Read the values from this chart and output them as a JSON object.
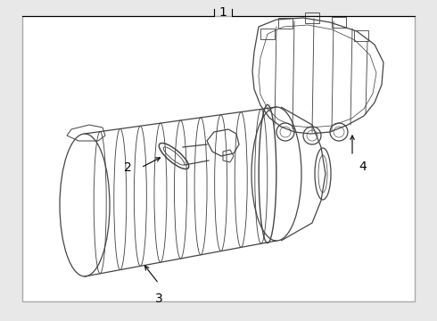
{
  "background_color": "#e8e8e8",
  "border_color": "#aaaaaa",
  "line_color": "#444444",
  "fill_color": "#ffffff",
  "text_color": "#000000",
  "label_1": "1",
  "label_2": "2",
  "label_3": "3",
  "label_4": "4",
  "figsize": [
    4.9,
    3.6
  ],
  "dpi": 100
}
